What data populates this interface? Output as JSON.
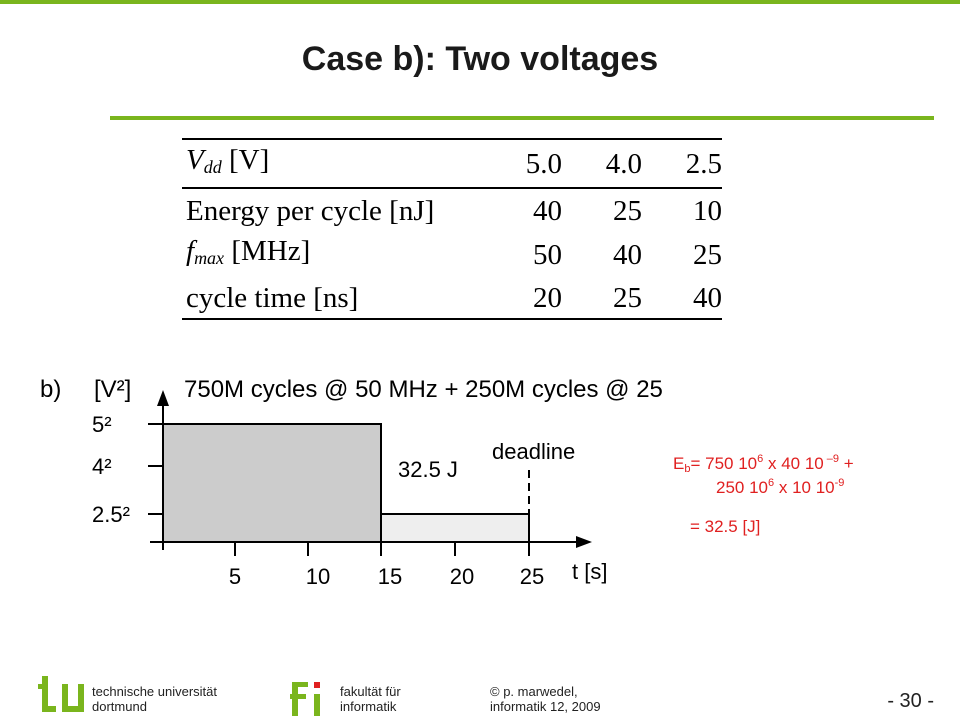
{
  "slide": {
    "title": "Case b): Two voltages",
    "page_number": "- 30 -"
  },
  "table": {
    "header": {
      "sym": "V",
      "sub": "dd",
      "unit": "[V]",
      "values": [
        "5.0",
        "4.0",
        "2.5"
      ]
    },
    "rows": [
      {
        "label": "Energy per cycle [nJ]",
        "values": [
          "40",
          "25",
          "10"
        ]
      },
      {
        "sym": "f",
        "sub": "max",
        "unit": "[MHz]",
        "values": [
          "50",
          "40",
          "25"
        ]
      },
      {
        "label": "cycle time [ns]",
        "values": [
          "20",
          "25",
          "40"
        ]
      }
    ]
  },
  "diagram": {
    "case_label": "b)",
    "y_unit": "[V²]",
    "caption": "750M cycles @ 50 MHz + 250M cycles @ 25",
    "y_ticks": [
      "5²",
      "4²",
      "2.5²"
    ],
    "x_ticks": [
      "5",
      "10",
      "15",
      "20",
      "25"
    ],
    "x_label": "t [s]",
    "energy_label": "32.5 J",
    "deadline_label": "deadline"
  },
  "formula": {
    "lhs": "E",
    "lhs_sub": "b",
    "line1_a": "= 750 10",
    "line1_exp1": "6",
    "line1_b": " x 40 10",
    "line1_exp2": " –9",
    "line1_c": " +",
    "line2_a": "250 10",
    "line2_exp1": "6",
    "line2_b": " x 10 10",
    "line2_exp2": "-9",
    "result": "= 32.5 [J]"
  },
  "footer": {
    "uni_line1": "technische universität",
    "uni_line2": "dortmund",
    "fac_line1": "fakultät für",
    "fac_line2": "informatik",
    "copy_symbol": "©",
    "author_line1": " p. marwedel,",
    "author_line2": "informatik 12,  2009"
  },
  "colors": {
    "accent_green": "#7ab51d",
    "formula_red": "#e02020",
    "bar_dark": "#cccccc",
    "bar_light": "#eeeeee"
  }
}
